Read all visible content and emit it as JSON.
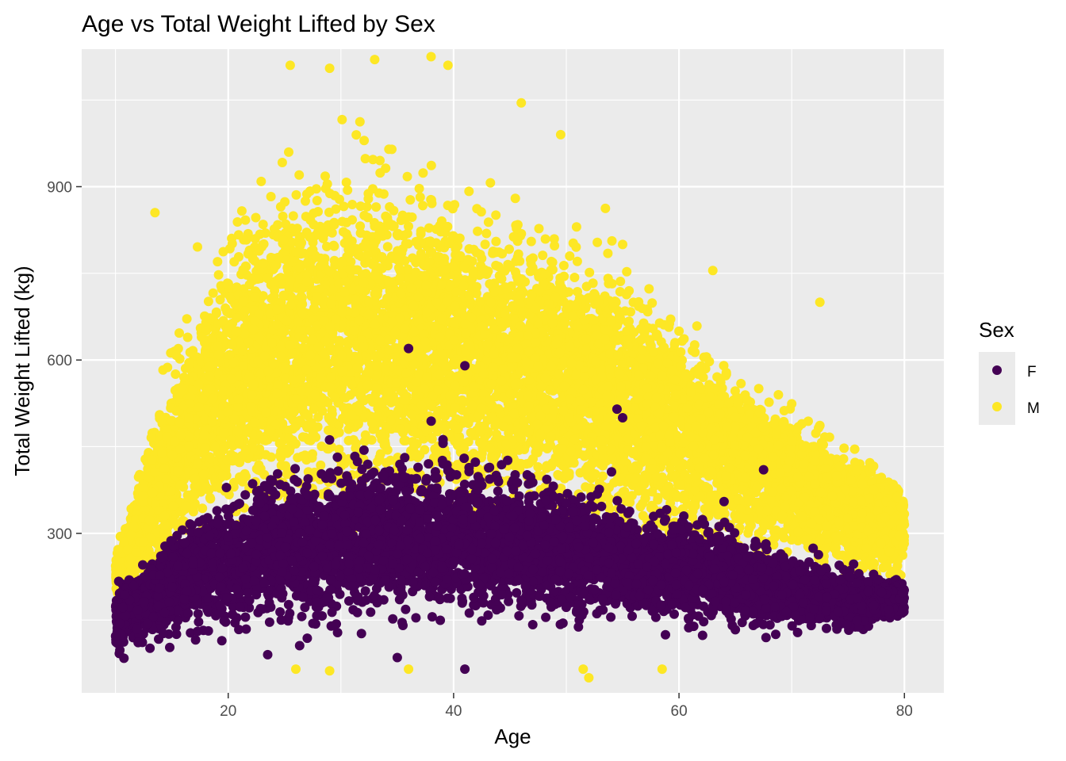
{
  "chart_data": {
    "type": "scatter",
    "title": "Age vs Total Weight Lifted by Sex",
    "xlabel": "Age",
    "ylabel": "Total Weight Lifted (kg)",
    "xlim": [
      7,
      83.5
    ],
    "ylim": [
      24,
      1138
    ],
    "x_ticks": [
      20,
      40,
      60,
      80
    ],
    "y_ticks": [
      300,
      600,
      900
    ],
    "grid": true,
    "legend": {
      "title": "Sex",
      "placement": "right",
      "entries": [
        {
          "label": "F",
          "color": "#440154"
        },
        {
          "label": "M",
          "color": "#FDE725"
        }
      ]
    },
    "series": [
      {
        "name": "M",
        "color": "#FDE725",
        "x_range": [
          10,
          80
        ],
        "envelope": [
          {
            "age": 10,
            "low": 120,
            "mid": 220,
            "high": 300
          },
          {
            "age": 15,
            "low": 150,
            "mid": 420,
            "high": 700
          },
          {
            "age": 20,
            "low": 170,
            "mid": 560,
            "high": 960
          },
          {
            "age": 25,
            "low": 180,
            "mid": 620,
            "high": 1050
          },
          {
            "age": 30,
            "low": 185,
            "mid": 640,
            "high": 1090
          },
          {
            "age": 35,
            "low": 190,
            "mid": 640,
            "high": 1060
          },
          {
            "age": 40,
            "low": 190,
            "mid": 630,
            "high": 1000
          },
          {
            "age": 45,
            "low": 185,
            "mid": 600,
            "high": 960
          },
          {
            "age": 50,
            "low": 180,
            "mid": 570,
            "high": 900
          },
          {
            "age": 55,
            "low": 175,
            "mid": 530,
            "high": 860
          },
          {
            "age": 60,
            "low": 170,
            "mid": 490,
            "high": 740
          },
          {
            "age": 65,
            "low": 165,
            "mid": 450,
            "high": 620
          },
          {
            "age": 70,
            "low": 160,
            "mid": 400,
            "high": 560
          },
          {
            "age": 75,
            "low": 155,
            "mid": 350,
            "high": 480
          },
          {
            "age": 80,
            "low": 190,
            "mid": 310,
            "high": 420
          }
        ],
        "outliers": [
          [
            13.5,
            855
          ],
          [
            25.5,
            1110
          ],
          [
            29,
            1105
          ],
          [
            33,
            1120
          ],
          [
            38,
            1125
          ],
          [
            39.5,
            1110
          ],
          [
            46,
            1045
          ],
          [
            49.5,
            990
          ],
          [
            63,
            755
          ],
          [
            72.5,
            700
          ],
          [
            26,
            65
          ],
          [
            29,
            62
          ],
          [
            36,
            65
          ],
          [
            51.5,
            65
          ],
          [
            52,
            50
          ],
          [
            58.5,
            65
          ],
          [
            12.5,
            285
          ],
          [
            55,
            800
          ],
          [
            60,
            650
          ]
        ]
      },
      {
        "name": "F",
        "color": "#440154",
        "x_range": [
          10,
          80
        ],
        "envelope": [
          {
            "age": 10,
            "low": 55,
            "mid": 150,
            "high": 240
          },
          {
            "age": 15,
            "low": 65,
            "mid": 220,
            "high": 330
          },
          {
            "age": 20,
            "low": 70,
            "mid": 255,
            "high": 420
          },
          {
            "age": 25,
            "low": 80,
            "mid": 275,
            "high": 470
          },
          {
            "age": 30,
            "low": 85,
            "mid": 285,
            "high": 500
          },
          {
            "age": 35,
            "low": 90,
            "mid": 290,
            "high": 520
          },
          {
            "age": 40,
            "low": 90,
            "mid": 285,
            "high": 500
          },
          {
            "age": 45,
            "low": 95,
            "mid": 280,
            "high": 480
          },
          {
            "age": 50,
            "low": 100,
            "mid": 270,
            "high": 440
          },
          {
            "age": 55,
            "low": 100,
            "mid": 255,
            "high": 400
          },
          {
            "age": 60,
            "low": 100,
            "mid": 240,
            "high": 380
          },
          {
            "age": 65,
            "low": 100,
            "mid": 220,
            "high": 340
          },
          {
            "age": 70,
            "low": 100,
            "mid": 200,
            "high": 300
          },
          {
            "age": 75,
            "low": 105,
            "mid": 185,
            "high": 265
          },
          {
            "age": 80,
            "low": 130,
            "mid": 190,
            "high": 230
          }
        ],
        "outliers": [
          [
            36,
            620
          ],
          [
            41,
            590
          ],
          [
            23.5,
            90
          ],
          [
            35,
            85
          ],
          [
            41,
            65
          ],
          [
            67.5,
            410
          ],
          [
            55,
            500
          ],
          [
            54.5,
            515
          ],
          [
            64,
            355
          ]
        ]
      }
    ]
  }
}
